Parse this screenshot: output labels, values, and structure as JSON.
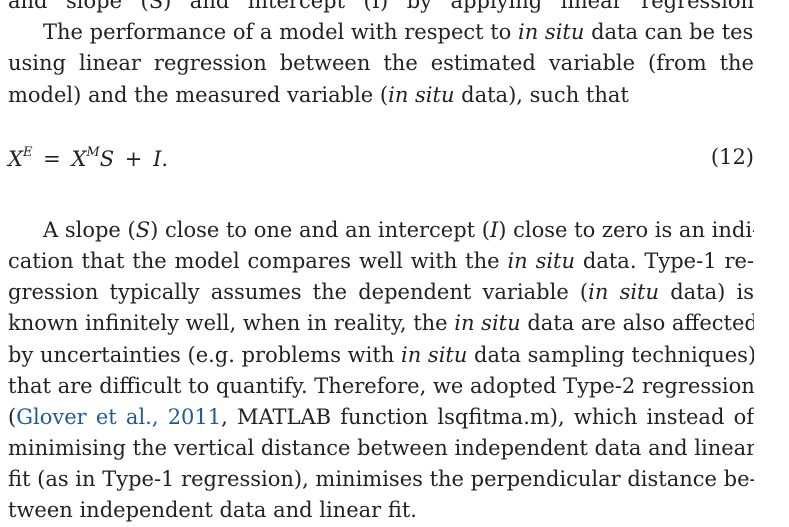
{
  "para_intro": {
    "line_0": "and slope (S) and intercept (I) by applying linear regression",
    "line_1": [
      {
        "t": "The performance of a model with respect to "
      },
      {
        "t": "in situ",
        "i": true
      },
      {
        "t": " data can be tested"
      }
    ],
    "line_2": "using linear regression between the estimated variable (from the",
    "line_3": [
      {
        "t": "model) and the measured variable ("
      },
      {
        "t": "in situ",
        "i": true
      },
      {
        "t": " data), such that"
      }
    ]
  },
  "equation": {
    "lhs": "X",
    "lhs_sup": "E",
    "equals": "=",
    "rhs_var": "X",
    "rhs_sup": "M",
    "slope": "S",
    "plus": "+",
    "intercept": "I",
    "period": ".",
    "number": "(12)"
  },
  "para_main": {
    "line_1": [
      {
        "t": "A slope ("
      },
      {
        "t": "S",
        "i": true
      },
      {
        "t": ") close to one and an intercept ("
      },
      {
        "t": "I",
        "i": true
      },
      {
        "t": ") close to zero is an indi-"
      }
    ],
    "line_2": [
      {
        "t": "cation that the model compares well with the "
      },
      {
        "t": "in situ",
        "i": true
      },
      {
        "t": " data. Type-1 re-"
      }
    ],
    "line_3": [
      {
        "t": "gression typically assumes the dependent variable ("
      },
      {
        "t": "in situ",
        "i": true
      },
      {
        "t": " data) is"
      }
    ],
    "line_4": [
      {
        "t": "known infinitely well, when in reality, the "
      },
      {
        "t": "in situ",
        "i": true
      },
      {
        "t": " data are also affected"
      }
    ],
    "line_5": [
      {
        "t": "by uncertainties (e.g. problems with "
      },
      {
        "t": "in situ",
        "i": true
      },
      {
        "t": " data sampling techniques)"
      }
    ],
    "line_6": "that are difficult to quantify. Therefore, we adopted Type-2 regression",
    "line_7": [
      {
        "t": "("
      },
      {
        "t": "Glover et al., 2011",
        "link": true
      },
      {
        "t": ", MATLAB function lsqfitma.m), which instead of"
      }
    ],
    "line_8": "minimising the vertical distance between independent data and linear",
    "line_9": "fit (as in Type-1 regression), minimises the perpendicular distance be-",
    "line_10": "tween independent data and linear fit."
  },
  "colors": {
    "text": "#222222",
    "link": "#1f5a99",
    "background": "#ffffff"
  }
}
